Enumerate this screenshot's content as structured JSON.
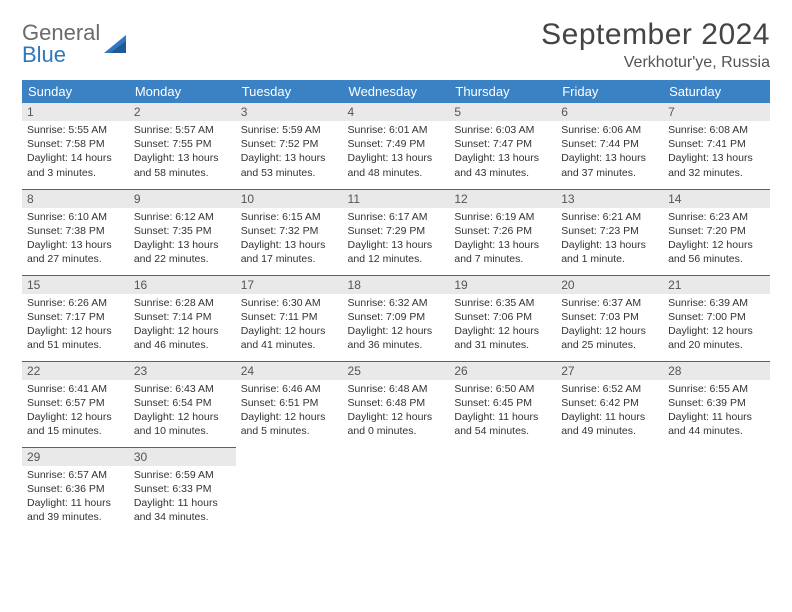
{
  "brand": {
    "general": "General",
    "blue": "Blue"
  },
  "header": {
    "title": "September 2024",
    "location": "Verkhotur'ye, Russia"
  },
  "style": {
    "header_bg": "#3a82c4",
    "header_fg": "#ffffff",
    "row_border": "#3a6a9a",
    "daynum_bg": "#e9e9e9",
    "body_fontsize": 10.5,
    "title_fontsize": 30,
    "location_fontsize": 16
  },
  "weekdays": [
    "Sunday",
    "Monday",
    "Tuesday",
    "Wednesday",
    "Thursday",
    "Friday",
    "Saturday"
  ],
  "weeks": [
    [
      {
        "n": "1",
        "sunrise": "5:55 AM",
        "sunset": "7:58 PM",
        "dl": "14 hours and 3 minutes."
      },
      {
        "n": "2",
        "sunrise": "5:57 AM",
        "sunset": "7:55 PM",
        "dl": "13 hours and 58 minutes."
      },
      {
        "n": "3",
        "sunrise": "5:59 AM",
        "sunset": "7:52 PM",
        "dl": "13 hours and 53 minutes."
      },
      {
        "n": "4",
        "sunrise": "6:01 AM",
        "sunset": "7:49 PM",
        "dl": "13 hours and 48 minutes."
      },
      {
        "n": "5",
        "sunrise": "6:03 AM",
        "sunset": "7:47 PM",
        "dl": "13 hours and 43 minutes."
      },
      {
        "n": "6",
        "sunrise": "6:06 AM",
        "sunset": "7:44 PM",
        "dl": "13 hours and 37 minutes."
      },
      {
        "n": "7",
        "sunrise": "6:08 AM",
        "sunset": "7:41 PM",
        "dl": "13 hours and 32 minutes."
      }
    ],
    [
      {
        "n": "8",
        "sunrise": "6:10 AM",
        "sunset": "7:38 PM",
        "dl": "13 hours and 27 minutes."
      },
      {
        "n": "9",
        "sunrise": "6:12 AM",
        "sunset": "7:35 PM",
        "dl": "13 hours and 22 minutes."
      },
      {
        "n": "10",
        "sunrise": "6:15 AM",
        "sunset": "7:32 PM",
        "dl": "13 hours and 17 minutes."
      },
      {
        "n": "11",
        "sunrise": "6:17 AM",
        "sunset": "7:29 PM",
        "dl": "13 hours and 12 minutes."
      },
      {
        "n": "12",
        "sunrise": "6:19 AM",
        "sunset": "7:26 PM",
        "dl": "13 hours and 7 minutes."
      },
      {
        "n": "13",
        "sunrise": "6:21 AM",
        "sunset": "7:23 PM",
        "dl": "13 hours and 1 minute."
      },
      {
        "n": "14",
        "sunrise": "6:23 AM",
        "sunset": "7:20 PM",
        "dl": "12 hours and 56 minutes."
      }
    ],
    [
      {
        "n": "15",
        "sunrise": "6:26 AM",
        "sunset": "7:17 PM",
        "dl": "12 hours and 51 minutes."
      },
      {
        "n": "16",
        "sunrise": "6:28 AM",
        "sunset": "7:14 PM",
        "dl": "12 hours and 46 minutes."
      },
      {
        "n": "17",
        "sunrise": "6:30 AM",
        "sunset": "7:11 PM",
        "dl": "12 hours and 41 minutes."
      },
      {
        "n": "18",
        "sunrise": "6:32 AM",
        "sunset": "7:09 PM",
        "dl": "12 hours and 36 minutes."
      },
      {
        "n": "19",
        "sunrise": "6:35 AM",
        "sunset": "7:06 PM",
        "dl": "12 hours and 31 minutes."
      },
      {
        "n": "20",
        "sunrise": "6:37 AM",
        "sunset": "7:03 PM",
        "dl": "12 hours and 25 minutes."
      },
      {
        "n": "21",
        "sunrise": "6:39 AM",
        "sunset": "7:00 PM",
        "dl": "12 hours and 20 minutes."
      }
    ],
    [
      {
        "n": "22",
        "sunrise": "6:41 AM",
        "sunset": "6:57 PM",
        "dl": "12 hours and 15 minutes."
      },
      {
        "n": "23",
        "sunrise": "6:43 AM",
        "sunset": "6:54 PM",
        "dl": "12 hours and 10 minutes."
      },
      {
        "n": "24",
        "sunrise": "6:46 AM",
        "sunset": "6:51 PM",
        "dl": "12 hours and 5 minutes."
      },
      {
        "n": "25",
        "sunrise": "6:48 AM",
        "sunset": "6:48 PM",
        "dl": "12 hours and 0 minutes."
      },
      {
        "n": "26",
        "sunrise": "6:50 AM",
        "sunset": "6:45 PM",
        "dl": "11 hours and 54 minutes."
      },
      {
        "n": "27",
        "sunrise": "6:52 AM",
        "sunset": "6:42 PM",
        "dl": "11 hours and 49 minutes."
      },
      {
        "n": "28",
        "sunrise": "6:55 AM",
        "sunset": "6:39 PM",
        "dl": "11 hours and 44 minutes."
      }
    ],
    [
      {
        "n": "29",
        "sunrise": "6:57 AM",
        "sunset": "6:36 PM",
        "dl": "11 hours and 39 minutes."
      },
      {
        "n": "30",
        "sunrise": "6:59 AM",
        "sunset": "6:33 PM",
        "dl": "11 hours and 34 minutes."
      },
      null,
      null,
      null,
      null,
      null
    ]
  ],
  "labels": {
    "sunrise": "Sunrise: ",
    "sunset": "Sunset: ",
    "daylight": "Daylight: "
  }
}
